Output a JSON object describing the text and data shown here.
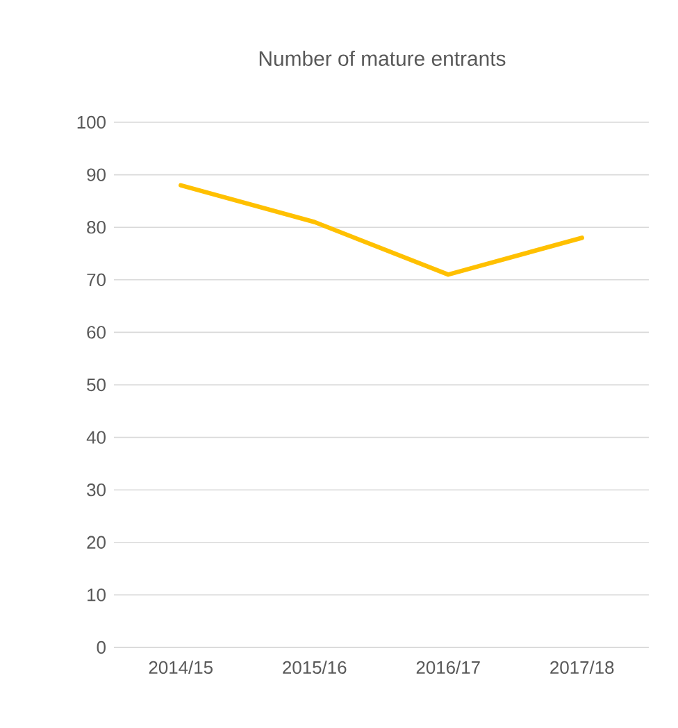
{
  "chart_data": {
    "type": "line",
    "title": "Number of mature entrants",
    "categories": [
      "2014/15",
      "2015/16",
      "2016/17",
      "2017/18"
    ],
    "series": [
      {
        "color": "#ffc000",
        "values": [
          88,
          81,
          71,
          78
        ]
      }
    ],
    "ylim": [
      0,
      100
    ],
    "yticks": [
      0,
      10,
      20,
      30,
      40,
      50,
      60,
      70,
      80,
      90,
      100
    ],
    "grid": "y",
    "marker": "none",
    "line_style": "solid"
  }
}
